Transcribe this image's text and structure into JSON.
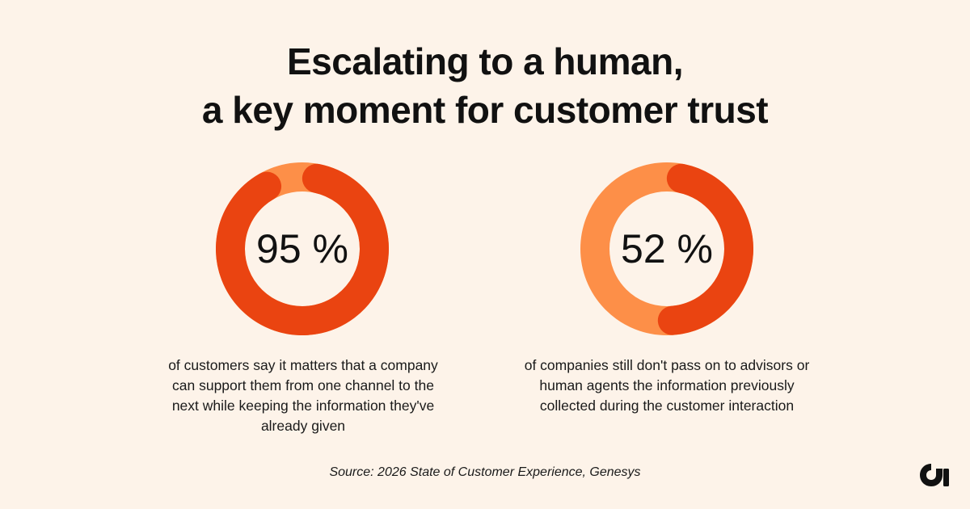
{
  "title": {
    "line1": "Escalating to a human,",
    "line2": "a key moment for customer trust"
  },
  "colors": {
    "background": "#fdf3e9",
    "filled": "#ea4411",
    "remainder": "#fd8f48"
  },
  "chart_data": [
    {
      "type": "pie",
      "variant": "donut",
      "value": 95,
      "max": 100,
      "label": "95 %",
      "caption": "of customers say it matters that a company can support them from one channel to the next while keeping the information they've already given"
    },
    {
      "type": "pie",
      "variant": "donut",
      "value": 52,
      "max": 100,
      "label": "52 %",
      "caption": "of companies still don't pass on to advisors or human agents the information previously collected during the customer interaction"
    }
  ],
  "source": "Source: 2026 State of Customer Experience, Genesys",
  "logo_icon": "brand-logo-icon"
}
